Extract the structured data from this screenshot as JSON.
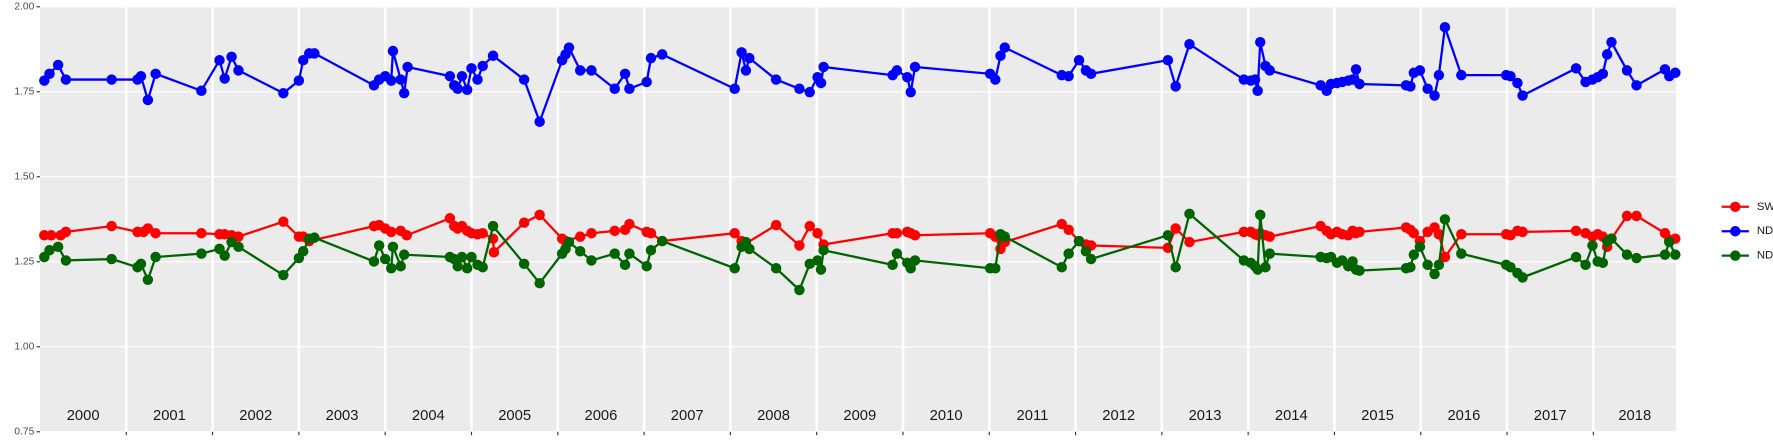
{
  "chart_data": {
    "type": "line",
    "xlim": [
      2000,
      2018.96
    ],
    "xticks": [
      2001,
      2002,
      2003,
      2004,
      2005,
      2006,
      2007,
      2008,
      2009,
      2010,
      2011,
      2012,
      2013,
      2014,
      2015,
      2016,
      2017,
      2018
    ],
    "year_labels": [
      "2000",
      "2001",
      "2002",
      "2003",
      "2004",
      "2005",
      "2006",
      "2007",
      "2008",
      "2009",
      "2010",
      "2011",
      "2012",
      "2013",
      "2014",
      "2015",
      "2016",
      "2017",
      "2018"
    ],
    "ylim": [
      0.75,
      2.0
    ],
    "yticks": [
      0.75,
      {
        "value": 1.0,
        "label": "1.00"
      },
      1.25,
      {
        "value": 1.5,
        "label": "1.50"
      },
      1.75,
      {
        "value": 2.0,
        "label": "2.00"
      }
    ],
    "grid": true,
    "legend": "right",
    "series": [
      {
        "name": "SWIR",
        "color": "#ff0000",
        "x": [
          2000.05,
          2000.13,
          2000.24,
          2000.3,
          2000.83,
          2001.13,
          2001.2,
          2001.25,
          2001.34,
          2001.87,
          2002.08,
          2002.14,
          2002.22,
          2002.3,
          2002.82,
          2003.0,
          2003.05,
          2003.12,
          2003.87,
          2003.93,
          2004.0,
          2004.07,
          2004.18,
          2004.25,
          2004.75,
          2004.8,
          2004.84,
          2004.89,
          2004.95,
          2005.0,
          2005.07,
          2005.13,
          2005.25,
          2005.26,
          2005.61,
          2005.79,
          2006.05,
          2006.09,
          2006.26,
          2006.39,
          2006.66,
          2006.78,
          2006.83,
          2007.03,
          2007.08,
          2007.21,
          2008.05,
          2008.13,
          2008.18,
          2008.53,
          2008.8,
          2008.92,
          2009.01,
          2009.08,
          2009.88,
          2009.93,
          2010.05,
          2010.09,
          2010.14,
          2011.01,
          2011.07,
          2011.13,
          2011.18,
          2011.84,
          2011.92,
          2012.04,
          2012.12,
          2012.18,
          2013.07,
          2013.16,
          2013.32,
          2013.95,
          2014.03,
          2014.08,
          2014.11,
          2014.14,
          2014.2,
          2014.25,
          2014.84,
          2014.91,
          2014.96,
          2015.03,
          2015.09,
          2015.16,
          2015.21,
          2015.25,
          2015.29,
          2015.83,
          2015.88,
          2015.92,
          2015.99,
          2016.08,
          2016.16,
          2016.21,
          2016.28,
          2016.47,
          2016.99,
          2017.04,
          2017.12,
          2017.18,
          2017.8,
          2017.91,
          2017.99,
          2018.05,
          2018.11,
          2018.16,
          2018.21,
          2018.39,
          2018.5,
          2018.83,
          2018.88,
          2018.95
        ],
        "values": [
          1.328,
          1.328,
          1.328,
          1.338,
          1.355,
          1.338,
          1.338,
          1.348,
          1.334,
          1.334,
          1.331,
          1.331,
          1.328,
          1.324,
          1.368,
          1.324,
          1.324,
          1.311,
          1.355,
          1.358,
          1.348,
          1.338,
          1.341,
          1.328,
          1.378,
          1.355,
          1.348,
          1.355,
          1.341,
          1.334,
          1.331,
          1.334,
          1.318,
          1.278,
          1.365,
          1.388,
          1.318,
          1.311,
          1.324,
          1.334,
          1.341,
          1.344,
          1.361,
          1.338,
          1.334,
          1.311,
          1.334,
          1.311,
          1.304,
          1.358,
          1.298,
          1.355,
          1.334,
          1.301,
          1.334,
          1.334,
          1.338,
          1.334,
          1.328,
          1.334,
          1.324,
          1.288,
          1.308,
          1.361,
          1.344,
          1.311,
          1.301,
          1.298,
          1.291,
          1.348,
          1.308,
          1.338,
          1.338,
          1.331,
          1.328,
          1.334,
          1.328,
          1.324,
          1.355,
          1.341,
          1.331,
          1.338,
          1.331,
          1.328,
          1.341,
          1.334,
          1.338,
          1.351,
          1.344,
          1.334,
          1.311,
          1.338,
          1.351,
          1.331,
          1.264,
          1.331,
          1.331,
          1.328,
          1.341,
          1.338,
          1.341,
          1.334,
          1.324,
          1.331,
          1.324,
          1.294,
          1.318,
          1.385,
          1.385,
          1.334,
          1.314,
          1.318
        ]
      },
      {
        "name": "NDVI",
        "color": "#0000ff",
        "x": [
          2000.05,
          2000.11,
          2000.21,
          2000.3,
          2000.83,
          2001.13,
          2001.17,
          2001.25,
          2001.34,
          2001.87,
          2002.08,
          2002.14,
          2002.22,
          2002.3,
          2002.82,
          2003.0,
          2003.05,
          2003.12,
          2003.18,
          2003.87,
          2003.93,
          2004.0,
          2004.07,
          2004.09,
          2004.18,
          2004.22,
          2004.26,
          2004.75,
          2004.8,
          2004.84,
          2004.89,
          2004.95,
          2005.0,
          2005.07,
          2005.13,
          2005.25,
          2005.61,
          2005.79,
          2006.05,
          2006.09,
          2006.13,
          2006.26,
          2006.39,
          2006.66,
          2006.78,
          2006.83,
          2007.03,
          2007.08,
          2007.21,
          2008.05,
          2008.13,
          2008.18,
          2008.22,
          2008.53,
          2008.8,
          2008.92,
          2009.01,
          2009.05,
          2009.08,
          2009.88,
          2009.93,
          2010.05,
          2010.09,
          2010.14,
          2011.01,
          2011.07,
          2011.13,
          2011.18,
          2011.84,
          2011.92,
          2012.04,
          2012.12,
          2012.18,
          2013.07,
          2013.16,
          2013.32,
          2013.95,
          2014.03,
          2014.08,
          2014.11,
          2014.14,
          2014.2,
          2014.25,
          2014.84,
          2014.91,
          2014.96,
          2015.03,
          2015.09,
          2015.16,
          2015.21,
          2015.25,
          2015.29,
          2015.83,
          2015.88,
          2015.92,
          2015.99,
          2016.08,
          2016.16,
          2016.21,
          2016.28,
          2016.47,
          2016.99,
          2017.04,
          2017.12,
          2017.18,
          2017.8,
          2017.91,
          2017.99,
          2018.05,
          2018.11,
          2018.16,
          2018.21,
          2018.39,
          2018.5,
          2018.83,
          2018.88,
          2018.95
        ],
        "values": [
          1.783,
          1.803,
          1.829,
          1.786,
          1.786,
          1.786,
          1.796,
          1.726,
          1.803,
          1.753,
          1.843,
          1.789,
          1.853,
          1.813,
          1.746,
          1.783,
          1.843,
          1.863,
          1.863,
          1.769,
          1.786,
          1.796,
          1.783,
          1.87,
          1.786,
          1.746,
          1.823,
          1.796,
          1.769,
          1.759,
          1.796,
          1.756,
          1.819,
          1.786,
          1.826,
          1.856,
          1.786,
          1.662,
          1.843,
          1.86,
          1.88,
          1.813,
          1.813,
          1.759,
          1.803,
          1.759,
          1.779,
          1.849,
          1.86,
          1.759,
          1.866,
          1.813,
          1.849,
          1.786,
          1.759,
          1.749,
          1.793,
          1.776,
          1.823,
          1.799,
          1.813,
          1.793,
          1.749,
          1.823,
          1.803,
          1.786,
          1.856,
          1.88,
          1.799,
          1.796,
          1.843,
          1.813,
          1.803,
          1.843,
          1.766,
          1.89,
          1.786,
          1.783,
          1.786,
          1.753,
          1.896,
          1.826,
          1.813,
          1.769,
          1.753,
          1.773,
          1.776,
          1.779,
          1.783,
          1.786,
          1.816,
          1.773,
          1.769,
          1.766,
          1.806,
          1.813,
          1.759,
          1.739,
          1.799,
          1.94,
          1.799,
          1.799,
          1.796,
          1.776,
          1.739,
          1.819,
          1.779,
          1.786,
          1.793,
          1.803,
          1.86,
          1.896,
          1.813,
          1.769,
          1.816,
          1.796,
          1.806
        ]
      },
      {
        "name": "NDWI",
        "color": "#006400",
        "x": [
          2000.05,
          2000.11,
          2000.21,
          2000.3,
          2000.83,
          2001.13,
          2001.17,
          2001.25,
          2001.34,
          2001.87,
          2002.08,
          2002.14,
          2002.22,
          2002.3,
          2002.82,
          2003.0,
          2003.05,
          2003.12,
          2003.18,
          2003.87,
          2003.93,
          2004.0,
          2004.07,
          2004.09,
          2004.18,
          2004.22,
          2004.75,
          2004.8,
          2004.84,
          2004.89,
          2004.95,
          2005.0,
          2005.07,
          2005.13,
          2005.25,
          2005.61,
          2005.79,
          2006.05,
          2006.09,
          2006.13,
          2006.26,
          2006.39,
          2006.66,
          2006.78,
          2006.83,
          2007.03,
          2007.08,
          2007.21,
          2008.05,
          2008.13,
          2008.18,
          2008.22,
          2008.53,
          2008.8,
          2008.92,
          2009.01,
          2009.05,
          2009.08,
          2009.88,
          2009.93,
          2010.05,
          2010.09,
          2010.14,
          2011.01,
          2011.07,
          2011.13,
          2011.18,
          2011.84,
          2011.92,
          2012.04,
          2012.12,
          2012.18,
          2013.07,
          2013.16,
          2013.32,
          2013.95,
          2014.03,
          2014.08,
          2014.11,
          2014.14,
          2014.2,
          2014.25,
          2014.84,
          2014.91,
          2014.96,
          2015.03,
          2015.09,
          2015.16,
          2015.21,
          2015.25,
          2015.29,
          2015.83,
          2015.88,
          2015.92,
          2015.99,
          2016.08,
          2016.16,
          2016.21,
          2016.28,
          2016.47,
          2016.99,
          2017.04,
          2017.12,
          2017.18,
          2017.8,
          2017.91,
          2017.99,
          2018.05,
          2018.11,
          2018.16,
          2018.21,
          2018.39,
          2018.5,
          2018.83,
          2018.88,
          2018.95
        ],
        "values": [
          1.264,
          1.284,
          1.294,
          1.254,
          1.258,
          1.234,
          1.244,
          1.197,
          1.264,
          1.274,
          1.288,
          1.268,
          1.308,
          1.294,
          1.211,
          1.261,
          1.281,
          1.318,
          1.321,
          1.251,
          1.298,
          1.258,
          1.231,
          1.294,
          1.237,
          1.271,
          1.264,
          1.258,
          1.237,
          1.264,
          1.231,
          1.264,
          1.241,
          1.234,
          1.355,
          1.244,
          1.187,
          1.274,
          1.288,
          1.308,
          1.281,
          1.254,
          1.274,
          1.241,
          1.274,
          1.237,
          1.284,
          1.311,
          1.231,
          1.294,
          1.308,
          1.288,
          1.231,
          1.167,
          1.244,
          1.254,
          1.227,
          1.284,
          1.241,
          1.274,
          1.247,
          1.231,
          1.254,
          1.231,
          1.231,
          1.331,
          1.324,
          1.234,
          1.274,
          1.311,
          1.281,
          1.258,
          1.328,
          1.234,
          1.391,
          1.254,
          1.247,
          1.237,
          1.227,
          1.388,
          1.234,
          1.274,
          1.264,
          1.261,
          1.264,
          1.247,
          1.254,
          1.237,
          1.251,
          1.227,
          1.224,
          1.231,
          1.234,
          1.271,
          1.294,
          1.241,
          1.214,
          1.241,
          1.375,
          1.274,
          1.241,
          1.234,
          1.217,
          1.204,
          1.264,
          1.241,
          1.298,
          1.251,
          1.247,
          1.311,
          1.318,
          1.271,
          1.261,
          1.271,
          1.308,
          1.271
        ]
      }
    ]
  }
}
